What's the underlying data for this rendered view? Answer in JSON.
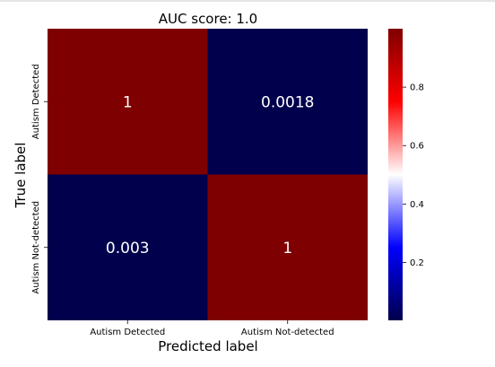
{
  "chart_data": {
    "type": "heatmap",
    "title": "AUC score: 1.0",
    "xlabel": "Predicted label",
    "ylabel": "True label",
    "x_categories": [
      "Autism Detected",
      "Autism Not-detected"
    ],
    "y_categories": [
      "Autism Detected",
      "Autism Not-detected"
    ],
    "values": [
      [
        1,
        0.0018
      ],
      [
        0.003,
        1
      ]
    ],
    "cell_labels": [
      [
        "1",
        "0.0018"
      ],
      [
        "0.003",
        "1"
      ]
    ],
    "colormap": "seismic",
    "colormap_stops": [
      "#00004c",
      "#0000ff",
      "#ffffff",
      "#ff0000",
      "#7f0000"
    ],
    "colorbar": {
      "range": [
        0.0018,
        1
      ],
      "ticks": [
        0.2,
        0.4,
        0.6,
        0.8
      ],
      "tick_labels": [
        "0.2",
        "0.4",
        "0.6",
        "0.8"
      ]
    },
    "cell_text_color": "#ffffff"
  }
}
